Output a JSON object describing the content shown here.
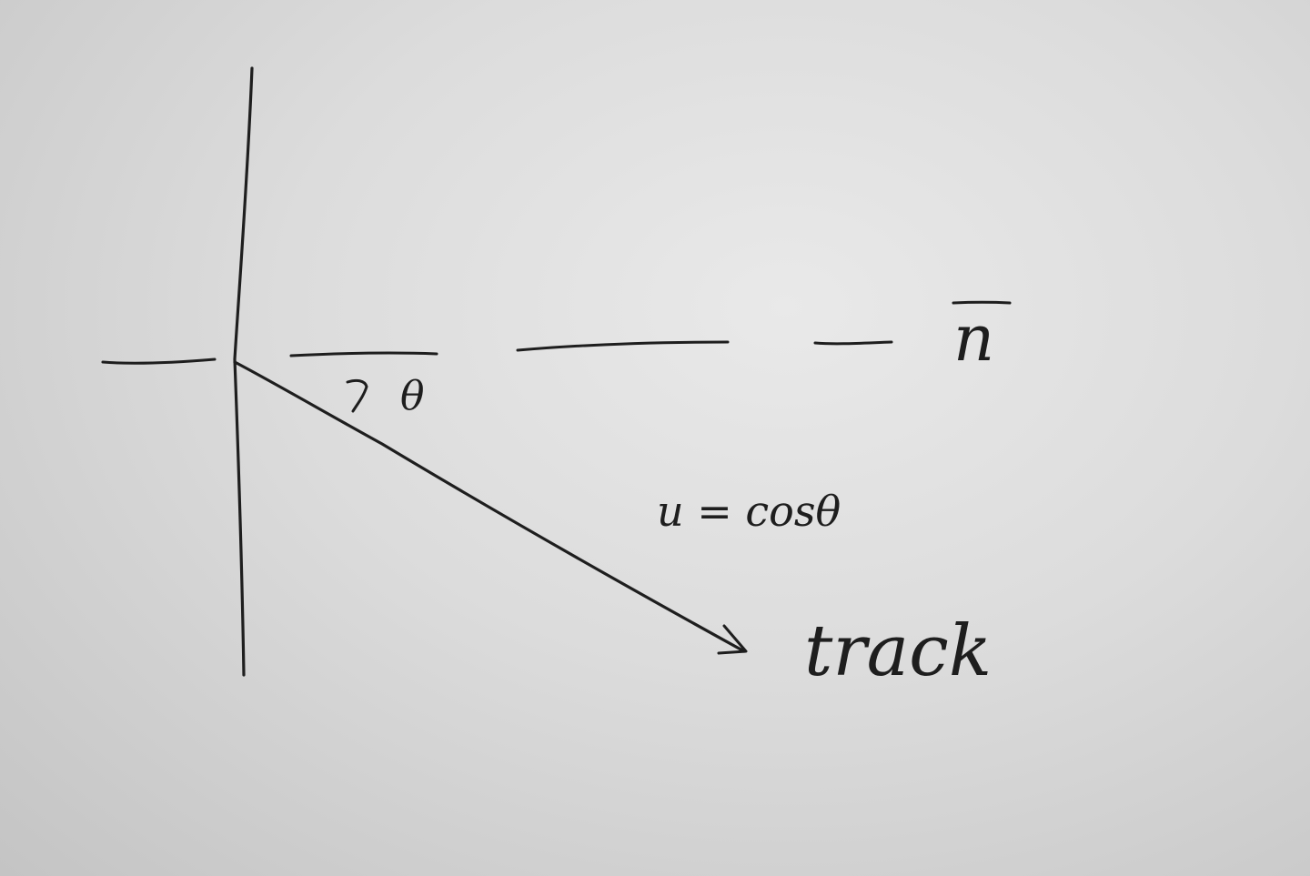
{
  "labels": {
    "angle": "θ",
    "normal": "n",
    "equation": "u = cosθ",
    "track": "track"
  }
}
